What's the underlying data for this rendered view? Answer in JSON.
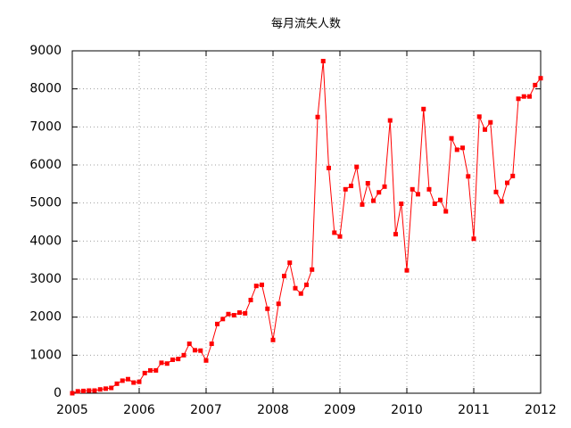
{
  "chart_data": {
    "type": "line",
    "title": "每月流失人数",
    "x": [
      2005,
      2005.083,
      2005.167,
      2005.25,
      2005.333,
      2005.417,
      2005.5,
      2005.583,
      2005.667,
      2005.75,
      2005.833,
      2005.917,
      2006,
      2006.083,
      2006.167,
      2006.25,
      2006.333,
      2006.417,
      2006.5,
      2006.583,
      2006.667,
      2006.75,
      2006.833,
      2006.917,
      2007,
      2007.083,
      2007.167,
      2007.25,
      2007.333,
      2007.417,
      2007.5,
      2007.583,
      2007.667,
      2007.75,
      2007.833,
      2007.917,
      2008,
      2008.083,
      2008.167,
      2008.25,
      2008.333,
      2008.417,
      2008.5,
      2008.583,
      2008.667,
      2008.75,
      2008.833,
      2008.917,
      2009,
      2009.083,
      2009.167,
      2009.25,
      2009.333,
      2009.417,
      2009.5,
      2009.583,
      2009.667,
      2009.75,
      2009.833,
      2009.917,
      2010,
      2010.083,
      2010.167,
      2010.25,
      2010.333,
      2010.417,
      2010.5,
      2010.583,
      2010.667,
      2010.75,
      2010.833,
      2010.917,
      2011,
      2011.083,
      2011.167,
      2011.25,
      2011.333,
      2011.417,
      2011.5,
      2011.583,
      2011.667,
      2011.75,
      2011.833,
      2011.917,
      2012
    ],
    "series": [
      {
        "color": "#ff0000",
        "values": [
          0,
          50,
          60,
          70,
          70,
          100,
          120,
          140,
          250,
          330,
          370,
          280,
          300,
          530,
          600,
          600,
          800,
          780,
          880,
          900,
          1000,
          1300,
          1130,
          1120,
          860,
          1300,
          1820,
          1950,
          2080,
          2050,
          2120,
          2100,
          2450,
          2820,
          2850,
          2220,
          1400,
          2350,
          3080,
          3430,
          2760,
          2620,
          2850,
          3250,
          7260,
          8730,
          5920,
          4220,
          4120,
          5360,
          5450,
          5950,
          4960,
          5520,
          5060,
          5280,
          5430,
          7170,
          4180,
          4980,
          3230,
          5360,
          5230,
          7470,
          5360,
          4980,
          5080,
          4780,
          6700,
          6400,
          6450,
          5700,
          4060,
          7270,
          6930,
          7120,
          5290,
          5040,
          5530,
          5710,
          7740,
          7800,
          7800,
          8100,
          8280
        ]
      }
    ],
    "xlim": [
      2005,
      2012
    ],
    "xticks": [
      2005,
      2006,
      2007,
      2008,
      2009,
      2010,
      2011,
      2012
    ],
    "ylim": [
      0,
      9000
    ],
    "yticks": [
      0,
      1000,
      2000,
      3000,
      4000,
      5000,
      6000,
      7000,
      8000,
      9000
    ],
    "grid": true
  }
}
